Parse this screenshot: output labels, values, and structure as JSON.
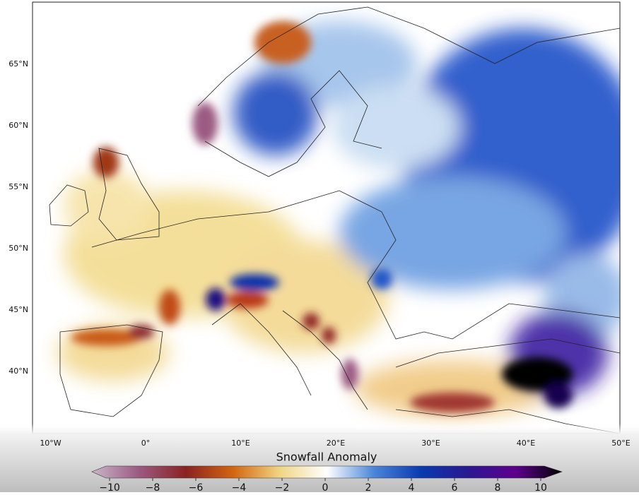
{
  "map": {
    "lat_labels": [
      {
        "value": 65,
        "label": "65°N"
      },
      {
        "value": 60,
        "label": "60°N"
      },
      {
        "value": 55,
        "label": "55°N"
      },
      {
        "value": 50,
        "label": "50°N"
      },
      {
        "value": 45,
        "label": "45°N"
      },
      {
        "value": 40,
        "label": "40°N"
      }
    ],
    "lon_labels": [
      {
        "value": -10,
        "label": "10°W"
      },
      {
        "value": 0,
        "label": "0°"
      },
      {
        "value": 10,
        "label": "10°E"
      },
      {
        "value": 20,
        "label": "20°E"
      },
      {
        "value": 30,
        "label": "30°E"
      },
      {
        "value": 40,
        "label": "40°E"
      },
      {
        "value": 50,
        "label": "50°E"
      }
    ]
  },
  "colorbar": {
    "title": "Snowfall Anomaly",
    "range": [
      -10,
      10
    ],
    "ticks": [
      {
        "value": -10,
        "label": "−10"
      },
      {
        "value": -8,
        "label": "−8"
      },
      {
        "value": -6,
        "label": "−6"
      },
      {
        "value": -4,
        "label": "−4"
      },
      {
        "value": -2,
        "label": "−2"
      },
      0,
      2,
      4,
      6,
      8,
      10
    ]
  }
}
